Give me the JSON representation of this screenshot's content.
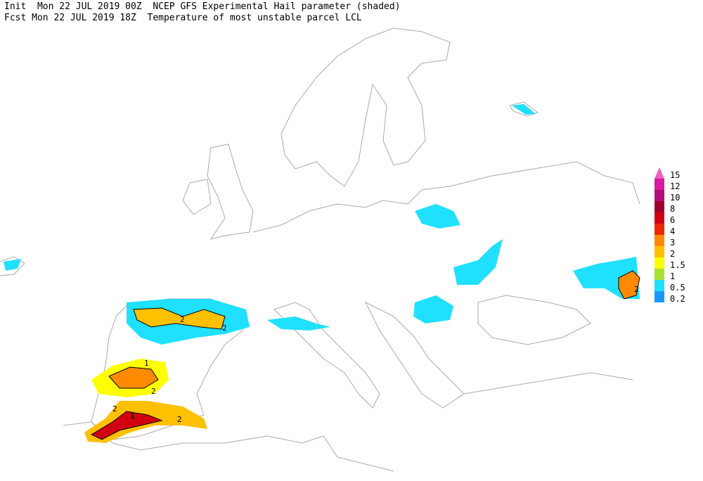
{
  "header": {
    "init": "Init  Mon 22 JUL 2019 00Z  NCEP GFS Experimental Hail parameter (shaded)",
    "fcst": "Fcst Mon 22 JUL 2019 18Z  Temperature of most unstable parcel LCL"
  },
  "legend": {
    "items": [
      {
        "label": "15",
        "color": "#f060c0"
      },
      {
        "label": "12",
        "color": "#d81aa0"
      },
      {
        "label": "10",
        "color": "#b0107a"
      },
      {
        "label": "8",
        "color": "#a00030"
      },
      {
        "label": "6",
        "color": "#d00010"
      },
      {
        "label": "4",
        "color": "#f02800"
      },
      {
        "label": "3",
        "color": "#ff8a00"
      },
      {
        "label": "2",
        "color": "#ffc000"
      },
      {
        "label": "1.5",
        "color": "#ffff00"
      },
      {
        "label": "1",
        "color": "#a8e030"
      },
      {
        "label": "0.5",
        "color": "#20e0ff"
      },
      {
        "label": "0.2",
        "color": "#1898ff"
      }
    ]
  },
  "contour_labels": [
    "2",
    "2",
    "2",
    "1",
    "2",
    "2",
    "1",
    "2"
  ]
}
